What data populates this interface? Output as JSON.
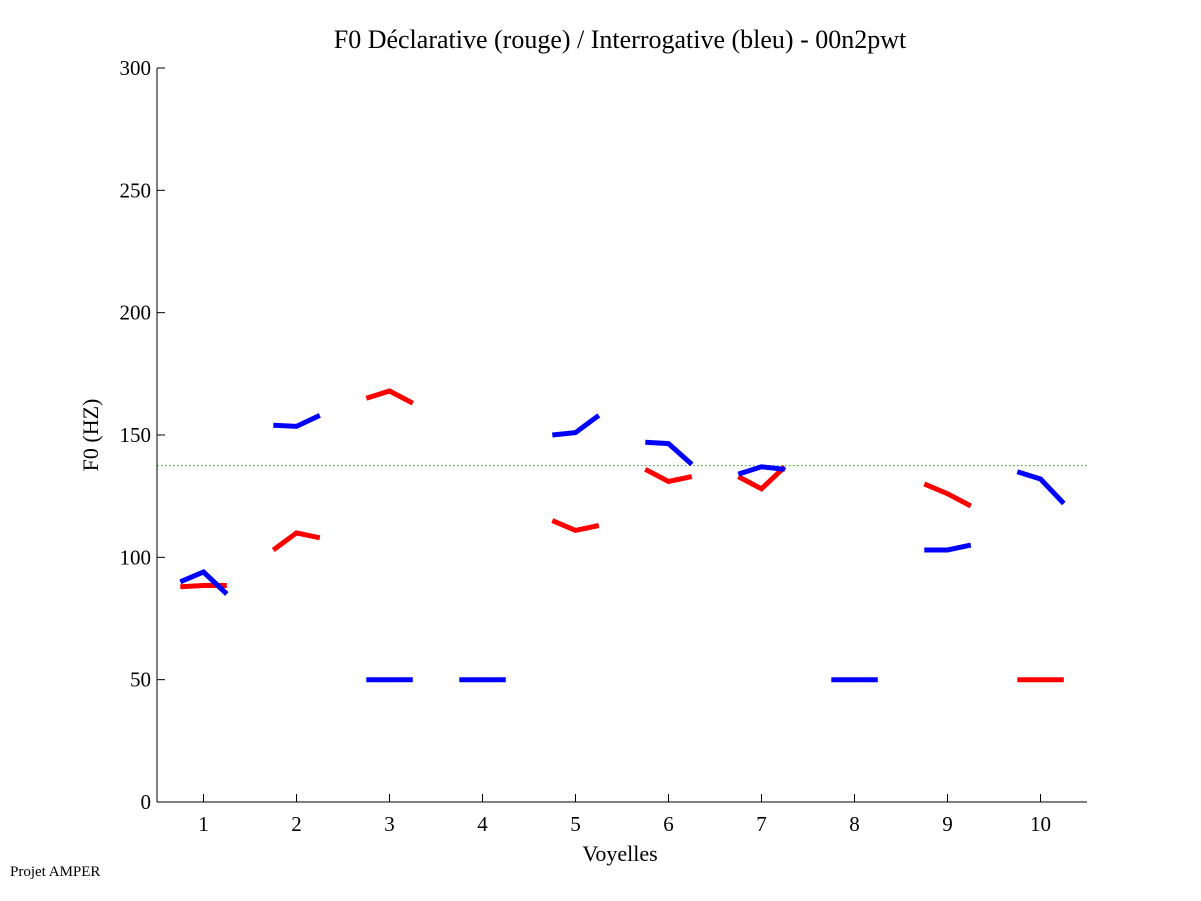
{
  "footer": {
    "label": "Projet AMPER"
  },
  "colors": {
    "declarative": "#ff0000",
    "interrogative": "#0000ff",
    "reference": "#22bb22",
    "axis": "#000000"
  },
  "chart_data": {
    "type": "line",
    "title": "F0 Déclarative (rouge) / Interrogative (bleu) - 00n2pwt",
    "xlabel": "Voyelles",
    "ylabel": "F0 (HZ)",
    "xlim": [
      0.5,
      10.5
    ],
    "ylim": [
      0,
      300
    ],
    "xticks": [
      1,
      2,
      3,
      4,
      5,
      6,
      7,
      8,
      9,
      10
    ],
    "xtick_labels": [
      "1",
      "2",
      "3",
      "4",
      "5",
      "6",
      "7",
      "8",
      "9",
      "10"
    ],
    "yticks": [
      0,
      50,
      100,
      150,
      200,
      250,
      300
    ],
    "ytick_labels": [
      "0",
      "50",
      "100",
      "150",
      "200",
      "250",
      "300"
    ],
    "reference_line": {
      "y": 137.5,
      "style": "dotted"
    },
    "series": [
      {
        "name": "Déclarative (rouge)",
        "color": "#ff0000",
        "segments": [
          {
            "vowel": 1,
            "points": [
              [
                0.75,
                88
              ],
              [
                1.0,
                88.5
              ],
              [
                1.25,
                88.5
              ]
            ]
          },
          {
            "vowel": 2,
            "points": [
              [
                1.75,
                103
              ],
              [
                2.0,
                110
              ],
              [
                2.25,
                108
              ]
            ]
          },
          {
            "vowel": 3,
            "points": [
              [
                2.75,
                165
              ],
              [
                3.0,
                168
              ],
              [
                3.25,
                163
              ]
            ]
          },
          {
            "vowel": 5,
            "points": [
              [
                4.75,
                115
              ],
              [
                5.0,
                111
              ],
              [
                5.25,
                113
              ]
            ]
          },
          {
            "vowel": 6,
            "points": [
              [
                5.75,
                136
              ],
              [
                6.0,
                131
              ],
              [
                6.25,
                133
              ]
            ]
          },
          {
            "vowel": 7,
            "points": [
              [
                6.75,
                133
              ],
              [
                7.0,
                128
              ],
              [
                7.25,
                137
              ]
            ]
          },
          {
            "vowel": 9,
            "points": [
              [
                8.75,
                130
              ],
              [
                9.0,
                126
              ],
              [
                9.25,
                121
              ]
            ]
          },
          {
            "vowel": 10,
            "points": [
              [
                9.75,
                50
              ],
              [
                10.0,
                50
              ],
              [
                10.25,
                50
              ]
            ]
          }
        ]
      },
      {
        "name": "Interrogative (bleu)",
        "color": "#0000ff",
        "segments": [
          {
            "vowel": 1,
            "points": [
              [
                0.75,
                90
              ],
              [
                1.0,
                94
              ],
              [
                1.25,
                85
              ]
            ]
          },
          {
            "vowel": 2,
            "points": [
              [
                1.75,
                154
              ],
              [
                2.0,
                153.5
              ],
              [
                2.25,
                158
              ]
            ]
          },
          {
            "vowel": 3,
            "points": [
              [
                2.75,
                50
              ],
              [
                3.0,
                50
              ],
              [
                3.25,
                50
              ]
            ]
          },
          {
            "vowel": 4,
            "points": [
              [
                3.75,
                50
              ],
              [
                4.0,
                50
              ],
              [
                4.25,
                50
              ]
            ]
          },
          {
            "vowel": 5,
            "points": [
              [
                4.75,
                150
              ],
              [
                5.0,
                151
              ],
              [
                5.25,
                158
              ]
            ]
          },
          {
            "vowel": 6,
            "points": [
              [
                5.75,
                147
              ],
              [
                6.0,
                146.5
              ],
              [
                6.25,
                138
              ]
            ]
          },
          {
            "vowel": 7,
            "points": [
              [
                6.75,
                134
              ],
              [
                7.0,
                137
              ],
              [
                7.25,
                136
              ]
            ]
          },
          {
            "vowel": 8,
            "points": [
              [
                7.75,
                50
              ],
              [
                8.0,
                50
              ],
              [
                8.25,
                50
              ]
            ]
          },
          {
            "vowel": 9,
            "points": [
              [
                8.75,
                103
              ],
              [
                9.0,
                103
              ],
              [
                9.25,
                105
              ]
            ]
          },
          {
            "vowel": 10,
            "points": [
              [
                9.75,
                135
              ],
              [
                10.0,
                132
              ],
              [
                10.25,
                122
              ]
            ]
          }
        ]
      }
    ]
  }
}
